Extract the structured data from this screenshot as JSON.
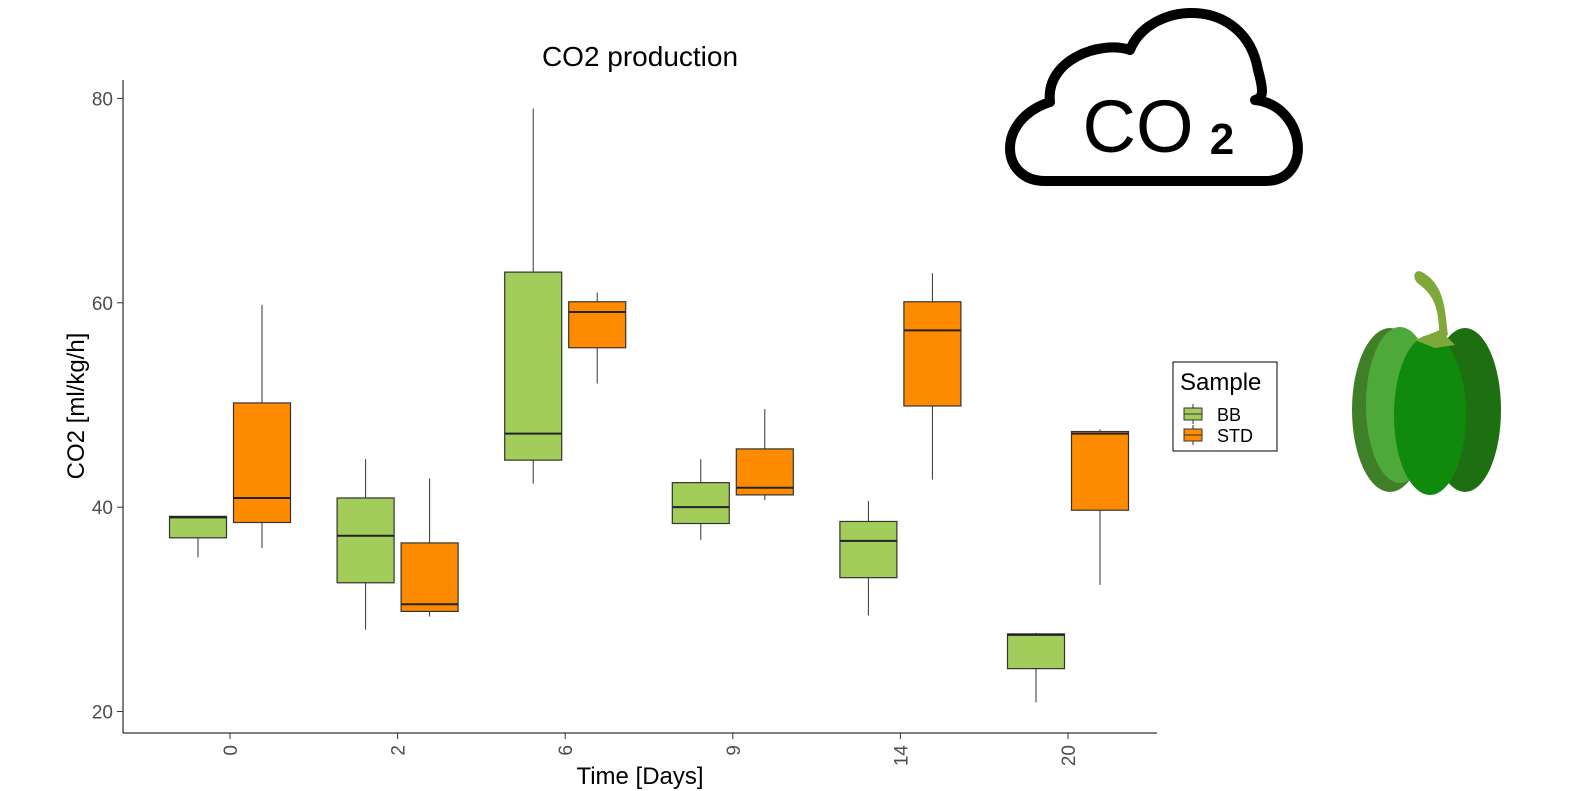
{
  "chart_data": {
    "type": "box",
    "title": "CO2 production",
    "x_label": "Time [Days]",
    "y_label": "CO2 [ml/kg/h]",
    "categories": [
      "0",
      "2",
      "6",
      "9",
      "14",
      "20"
    ],
    "ylim": [
      17.9,
      81.8
    ],
    "yticks": [
      20,
      40,
      60,
      80
    ],
    "legend_title": "Sample",
    "legend_position": "right",
    "series": [
      {
        "name": "BB",
        "color": "#a2cd5a",
        "values": [
          {
            "min": 35.1,
            "q1": 37.0,
            "median": 39.0,
            "q3": 39.1,
            "max": 39.1
          },
          {
            "min": 28.0,
            "q1": 32.6,
            "median": 37.2,
            "q3": 40.9,
            "max": 44.7
          },
          {
            "min": 42.3,
            "q1": 44.6,
            "median": 47.2,
            "q3": 63.0,
            "max": 79.0
          },
          {
            "min": 36.8,
            "q1": 38.4,
            "median": 40.0,
            "q3": 42.4,
            "max": 44.7
          },
          {
            "min": 29.4,
            "q1": 33.1,
            "median": 36.7,
            "q3": 38.6,
            "max": 40.6
          },
          {
            "min": 20.9,
            "q1": 24.2,
            "median": 27.5,
            "q3": 27.6,
            "max": 27.7
          }
        ]
      },
      {
        "name": "STD",
        "color": "#ff8c00",
        "values": [
          {
            "min": 36.0,
            "q1": 38.5,
            "median": 40.9,
            "q3": 50.2,
            "max": 59.8
          },
          {
            "min": 29.3,
            "q1": 29.8,
            "median": 30.5,
            "q3": 36.5,
            "max": 42.8
          },
          {
            "min": 52.1,
            "q1": 55.6,
            "median": 59.1,
            "q3": 60.1,
            "max": 61.0
          },
          {
            "min": 40.7,
            "q1": 41.2,
            "median": 41.9,
            "q3": 45.7,
            "max": 49.6
          },
          {
            "min": 42.7,
            "q1": 49.9,
            "median": 57.3,
            "q3": 60.1,
            "max": 62.9
          },
          {
            "min": 32.4,
            "q1": 39.7,
            "median": 47.2,
            "q3": 47.4,
            "max": 47.6
          }
        ]
      }
    ]
  },
  "icon": {
    "text": "CO",
    "subscript": "2"
  }
}
